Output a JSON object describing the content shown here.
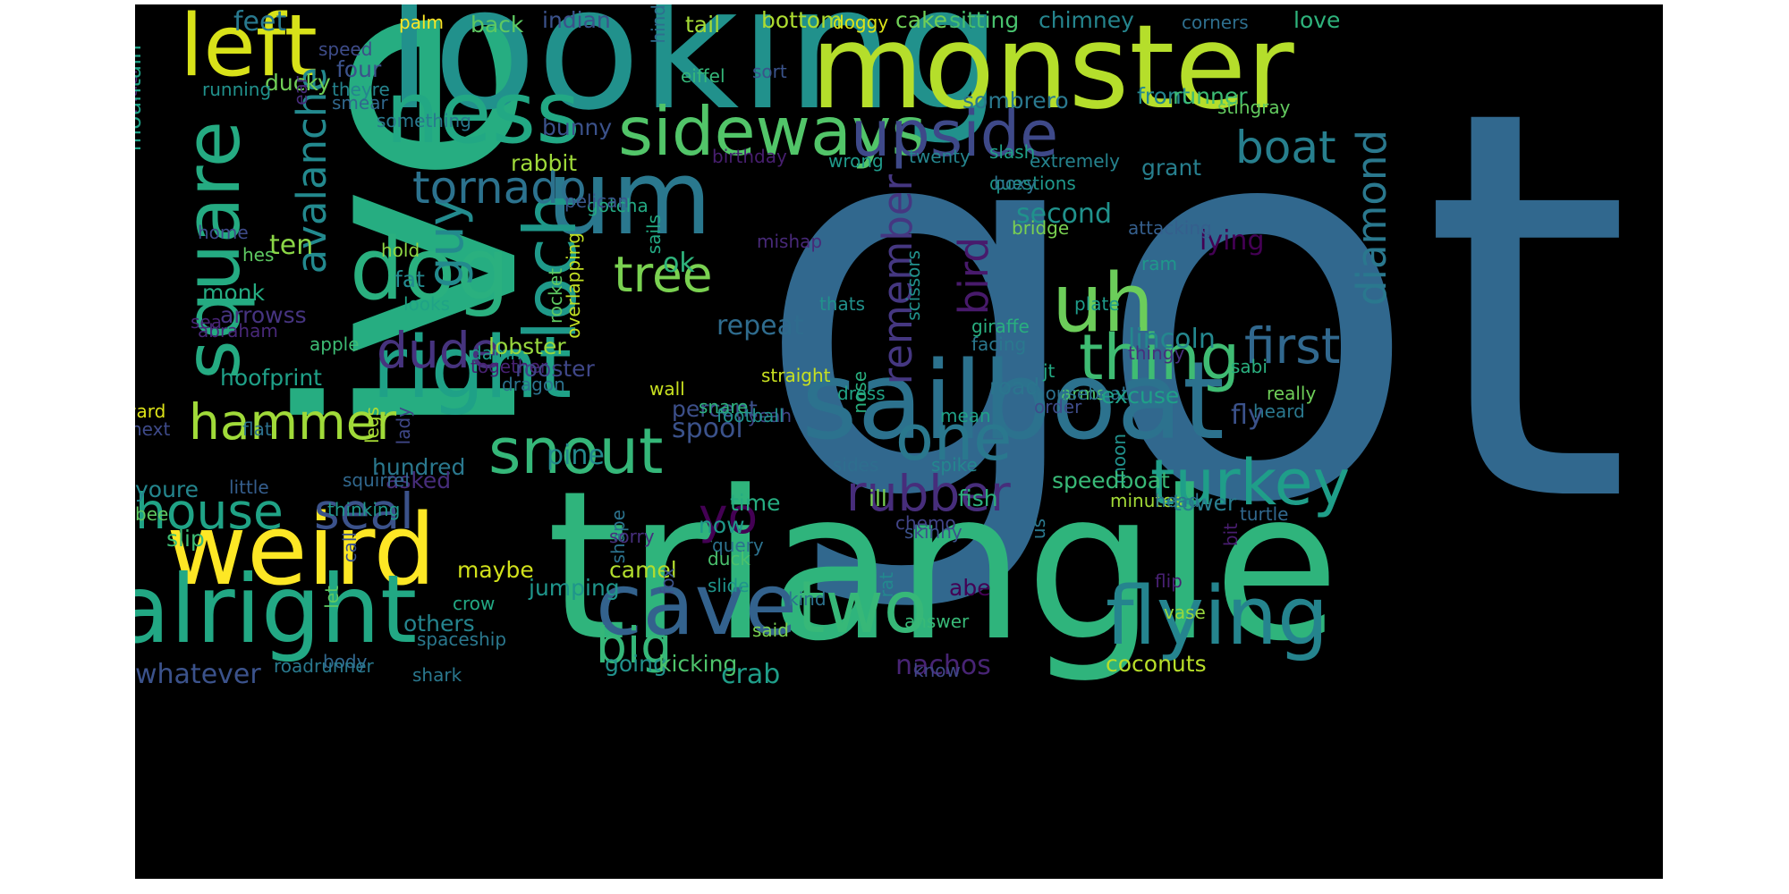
{
  "palette": {
    "background": "#000000",
    "page": "#ffffff"
  },
  "words": [
    {
      "text": "got",
      "color": "#31688e"
    },
    {
      "text": "ive",
      "color": "#26ad81"
    },
    {
      "text": "triangle",
      "color": "#2fb47c"
    },
    {
      "text": "looking",
      "color": "#21918c"
    },
    {
      "text": "monster",
      "color": "#b5de2b"
    },
    {
      "text": "sailboat",
      "color": "#2c728e"
    },
    {
      "text": "um",
      "color": "#2a788e"
    },
    {
      "text": "weird",
      "color": "#fde725"
    },
    {
      "text": "alright",
      "color": "#22a884"
    },
    {
      "text": "right",
      "color": "#1fa187"
    },
    {
      "text": "cave",
      "color": "#33628d"
    },
    {
      "text": "ness",
      "color": "#22a884"
    },
    {
      "text": "dog",
      "color": "#2ab07f"
    },
    {
      "text": "left",
      "color": "#d8e219"
    },
    {
      "text": "uh",
      "color": "#6ccd5a"
    },
    {
      "text": "flying",
      "color": "#25848e"
    },
    {
      "text": "square",
      "color": "#25ab82"
    },
    {
      "text": "loch",
      "color": "#1f998a"
    },
    {
      "text": "two",
      "color": "#37b878"
    },
    {
      "text": "sideways",
      "color": "#52c569"
    },
    {
      "text": "upside",
      "color": "#3e4989"
    },
    {
      "text": "thing",
      "color": "#3fbc73"
    },
    {
      "text": "snout",
      "color": "#35b779"
    },
    {
      "text": "one",
      "color": "#2a788e"
    },
    {
      "text": "turkey",
      "color": "#1f9e89"
    },
    {
      "text": "hammer",
      "color": "#a0da39"
    },
    {
      "text": "house",
      "color": "#20a386"
    },
    {
      "text": "seal",
      "color": "#3b528b"
    },
    {
      "text": "yo",
      "color": "#440154"
    },
    {
      "text": "dude",
      "color": "#46337e"
    },
    {
      "text": "guy",
      "color": "#238a8d"
    },
    {
      "text": "tree",
      "color": "#7ad151"
    },
    {
      "text": "first",
      "color": "#31688e"
    },
    {
      "text": "rubber",
      "color": "#472d7b"
    },
    {
      "text": "big",
      "color": "#35b779"
    },
    {
      "text": "boat",
      "color": "#277f8e"
    },
    {
      "text": "tornado",
      "color": "#2c728e"
    },
    {
      "text": "avalanche",
      "color": "#23898e"
    },
    {
      "text": "remember",
      "color": "#453781"
    },
    {
      "text": "bird",
      "color": "#481a6c"
    },
    {
      "text": "diamond",
      "color": "#2a788e"
    },
    {
      "text": "feet",
      "color": "#29798e"
    },
    {
      "text": "palm",
      "color": "#fde725"
    },
    {
      "text": "back",
      "color": "#5ec962"
    },
    {
      "text": "indian",
      "color": "#3b528b"
    },
    {
      "text": "tail",
      "color": "#a5db36"
    },
    {
      "text": "bottom",
      "color": "#addc30"
    },
    {
      "text": "doggy",
      "color": "#dde318"
    },
    {
      "text": "cake",
      "color": "#70cf57"
    },
    {
      "text": "sitting",
      "color": "#48c16e"
    },
    {
      "text": "chimney",
      "color": "#25858e"
    },
    {
      "text": "corners",
      "color": "#2e6f8e"
    },
    {
      "text": "love",
      "color": "#2eb37c"
    },
    {
      "text": "hitler",
      "color": "#482677"
    },
    {
      "text": "speed",
      "color": "#3e4c8a"
    },
    {
      "text": "four",
      "color": "#3b528b"
    },
    {
      "text": "ducky",
      "color": "#70cf57"
    },
    {
      "text": "eiffel",
      "color": "#35b779"
    },
    {
      "text": "sort",
      "color": "#3a538b"
    },
    {
      "text": "mountain",
      "color": "#1fa187"
    },
    {
      "text": "running",
      "color": "#21918c"
    },
    {
      "text": "theyre",
      "color": "#25848e"
    },
    {
      "text": "smear",
      "color": "#31688e"
    },
    {
      "text": "hind",
      "color": "#2e6e8e"
    },
    {
      "text": "ear",
      "color": "#472c7a"
    },
    {
      "text": "sombrero",
      "color": "#2a788e"
    },
    {
      "text": "front",
      "color": "#24878e"
    },
    {
      "text": "runner",
      "color": "#3dbc74"
    },
    {
      "text": "stingray",
      "color": "#63cb5f"
    },
    {
      "text": "something",
      "color": "#29798e"
    },
    {
      "text": "bunny",
      "color": "#3b528b"
    },
    {
      "text": "rabbit",
      "color": "#9fda3a"
    },
    {
      "text": "grant",
      "color": "#277f8e"
    },
    {
      "text": "gotcha",
      "color": "#23a983"
    },
    {
      "text": "birthday",
      "color": "#481f70"
    },
    {
      "text": "wrong",
      "color": "#1f9a8a"
    },
    {
      "text": "twenty",
      "color": "#25858e"
    },
    {
      "text": "slash",
      "color": "#1fa287"
    },
    {
      "text": "extremely",
      "color": "#25838e"
    },
    {
      "text": "questions",
      "color": "#1f988b"
    },
    {
      "text": "boxy",
      "color": "#2c738e"
    },
    {
      "text": "pelican",
      "color": "#39568c"
    },
    {
      "text": "second",
      "color": "#20928c"
    },
    {
      "text": "ten",
      "color": "#8bd646"
    },
    {
      "text": "lying",
      "color": "#440154"
    },
    {
      "text": "home",
      "color": "#3e4a89"
    },
    {
      "text": "sails",
      "color": "#23a983"
    },
    {
      "text": "attacking",
      "color": "#355f8d"
    },
    {
      "text": "bridge",
      "color": "#7ad151"
    },
    {
      "text": "hes",
      "color": "#5ec962"
    },
    {
      "text": "hold",
      "color": "#8fd744"
    },
    {
      "text": "ok",
      "color": "#2fb47c"
    },
    {
      "text": "mishap",
      "color": "#482979"
    },
    {
      "text": "scissors",
      "color": "#21918c"
    },
    {
      "text": "ram",
      "color": "#1f988b"
    },
    {
      "text": "monk",
      "color": "#25ac82"
    },
    {
      "text": "fat",
      "color": "#23898e"
    },
    {
      "text": "arrowss",
      "color": "#463480"
    },
    {
      "text": "looks",
      "color": "#20a386"
    },
    {
      "text": "overlapping",
      "color": "#c2df23"
    },
    {
      "text": "rocket",
      "color": "#5ec962"
    },
    {
      "text": "thats",
      "color": "#21918c"
    },
    {
      "text": "plate",
      "color": "#1e9b8a"
    },
    {
      "text": "sea",
      "color": "#482475"
    },
    {
      "text": "abraham",
      "color": "#482878"
    },
    {
      "text": "repeat",
      "color": "#2f6c8e"
    },
    {
      "text": "lincoln",
      "color": "#24878e"
    },
    {
      "text": "giraffe",
      "color": "#29af7f"
    },
    {
      "text": "facing",
      "color": "#2a788e"
    },
    {
      "text": "apple",
      "color": "#3dbc74"
    },
    {
      "text": "damn",
      "color": "#1f998a"
    },
    {
      "text": "lobster",
      "color": "#98d83e"
    },
    {
      "text": "thingy",
      "color": "#472f7d"
    },
    {
      "text": "together",
      "color": "#482173"
    },
    {
      "text": "hoofprint",
      "color": "#1fa088"
    },
    {
      "text": "rooster",
      "color": "#3f4788"
    },
    {
      "text": "jt",
      "color": "#23a983"
    },
    {
      "text": "sabi",
      "color": "#2ab07f"
    },
    {
      "text": "straight",
      "color": "#c8e020"
    },
    {
      "text": "road",
      "color": "#2b758e"
    },
    {
      "text": "arms",
      "color": "#4ec36b"
    },
    {
      "text": "houseboat",
      "color": "#2c718e"
    },
    {
      "text": "wall",
      "color": "#c8e020"
    },
    {
      "text": "dragon",
      "color": "#2c728e"
    },
    {
      "text": "percent",
      "color": "#3c4f8a"
    },
    {
      "text": "dress",
      "color": "#20a386"
    },
    {
      "text": "order",
      "color": "#3e4c8a"
    },
    {
      "text": "really",
      "color": "#6ece58"
    },
    {
      "text": "awkward",
      "color": "#dde318"
    },
    {
      "text": "snare",
      "color": "#2db27d"
    },
    {
      "text": "excuse",
      "color": "#1fa088"
    },
    {
      "text": "nose",
      "color": "#29af7f"
    },
    {
      "text": "heard",
      "color": "#2a788e"
    },
    {
      "text": "next",
      "color": "#3e4a89"
    },
    {
      "text": "legs",
      "color": "#a8db34"
    },
    {
      "text": "yeah",
      "color": "#414487"
    },
    {
      "text": "mean",
      "color": "#1fa187"
    },
    {
      "text": "spool",
      "color": "#3b528b"
    },
    {
      "text": "football",
      "color": "#21918c"
    },
    {
      "text": "fly",
      "color": "#3b528b"
    },
    {
      "text": "flat",
      "color": "#2d718e"
    },
    {
      "text": "lady",
      "color": "#3f4889"
    },
    {
      "text": "pine",
      "color": "#23898e"
    },
    {
      "text": "moon",
      "color": "#21918c"
    },
    {
      "text": "hundred",
      "color": "#2a788e"
    },
    {
      "text": "sides",
      "color": "#2e6e8e"
    },
    {
      "text": "spike",
      "color": "#24878e"
    },
    {
      "text": "youre",
      "color": "#24868e"
    },
    {
      "text": "asked",
      "color": "#472d7b"
    },
    {
      "text": "speedboat",
      "color": "#38b977"
    },
    {
      "text": "squirrel",
      "color": "#31688e"
    },
    {
      "text": "little",
      "color": "#355e8d"
    },
    {
      "text": "thinking",
      "color": "#1f998a"
    },
    {
      "text": "ill",
      "color": "#7ad151"
    },
    {
      "text": "fish",
      "color": "#2db27d"
    },
    {
      "text": "bee",
      "color": "#5ec962"
    },
    {
      "text": "time",
      "color": "#26ad81"
    },
    {
      "text": "minutes",
      "color": "#a2da37"
    },
    {
      "text": "head",
      "color": "#2c728e"
    },
    {
      "text": "tower",
      "color": "#287c8e"
    },
    {
      "text": "slip",
      "color": "#3dbc74"
    },
    {
      "text": "now",
      "color": "#1f998a"
    },
    {
      "text": "chemo",
      "color": "#414487"
    },
    {
      "text": "shape",
      "color": "#2c738e"
    },
    {
      "text": "turtle",
      "color": "#31688e"
    },
    {
      "text": "skinny",
      "color": "#3b528b"
    },
    {
      "text": "sorry",
      "color": "#472f7d"
    },
    {
      "text": "query",
      "color": "#2c728e"
    },
    {
      "text": "us",
      "color": "#2a788e"
    },
    {
      "text": "bit",
      "color": "#481d6f"
    },
    {
      "text": "maybe",
      "color": "#d2e21b"
    },
    {
      "text": "duck",
      "color": "#4ac16d"
    },
    {
      "text": "call",
      "color": "#3b528b"
    },
    {
      "text": "camel",
      "color": "#b2dd2d"
    },
    {
      "text": "jumping",
      "color": "#1f958b"
    },
    {
      "text": "slide",
      "color": "#1f958b"
    },
    {
      "text": "fox",
      "color": "#3b528b"
    },
    {
      "text": "flip",
      "color": "#482173"
    },
    {
      "text": "rat",
      "color": "#23898e"
    },
    {
      "text": "abe",
      "color": "#440154"
    },
    {
      "text": "let",
      "color": "#5ec962"
    },
    {
      "text": "crow",
      "color": "#22a884"
    },
    {
      "text": "kind",
      "color": "#2c728e"
    },
    {
      "text": "vase",
      "color": "#98d83e"
    },
    {
      "text": "others",
      "color": "#25848e"
    },
    {
      "text": "said",
      "color": "#7ad151"
    },
    {
      "text": "answer",
      "color": "#38b977"
    },
    {
      "text": "spaceship",
      "color": "#2a788e"
    },
    {
      "text": "body",
      "color": "#31688e"
    },
    {
      "text": "roadrunner",
      "color": "#29798e"
    },
    {
      "text": "whatever",
      "color": "#3b528b"
    },
    {
      "text": "going",
      "color": "#21918c"
    },
    {
      "text": "kicking",
      "color": "#4ec36b"
    },
    {
      "text": "crab",
      "color": "#1f9e89"
    },
    {
      "text": "nachos",
      "color": "#482475"
    },
    {
      "text": "know",
      "color": "#3f4788"
    },
    {
      "text": "coconuts",
      "color": "#b8de29"
    },
    {
      "text": "shark",
      "color": "#2a788e"
    }
  ]
}
